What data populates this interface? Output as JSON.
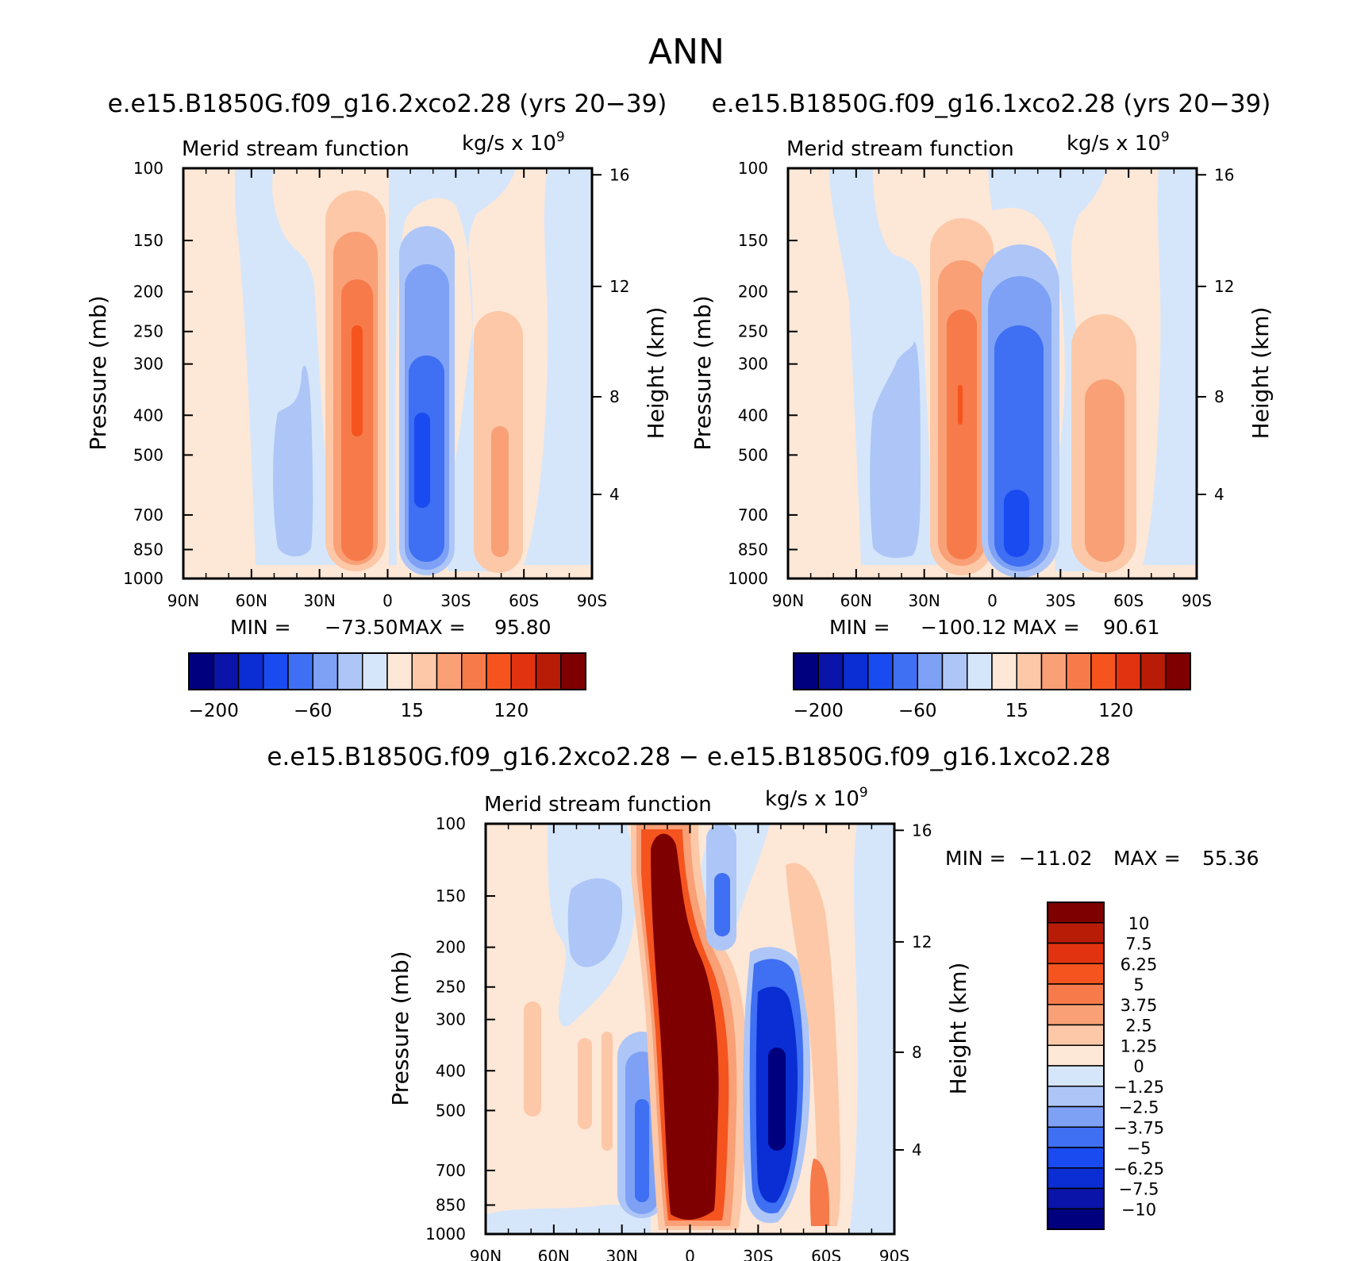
{
  "figure": {
    "title": "ANN",
    "diff_title": "e.e15.B1850G.f09_g16.2xco2.28 − e.e15.B1850G.f09_g16.1xco2.28"
  },
  "chart_data": [
    {
      "type": "heatmap",
      "id": "p1",
      "title": "e.e15.B1850G.f09_g16.2xco2.28 (yrs 20−39)",
      "left_label": "Merid stream function",
      "units_base": "kg/s x 10",
      "units_exp": "9",
      "xlabel": "",
      "ylabel": "Pressure (mb)",
      "ylabel_right": "Height (km)",
      "x_ticks": [
        "90N",
        "60N",
        "30N",
        "0",
        "30S",
        "60S",
        "90S"
      ],
      "y_ticks": [
        "100",
        "150",
        "200",
        "250",
        "300",
        "400",
        "500",
        "700",
        "850",
        "1000"
      ],
      "y_ticks_right": [
        "16",
        "12",
        "8",
        "4"
      ],
      "y_scale": "log",
      "ylim": [
        1000,
        100
      ],
      "min_label": "MIN =",
      "min_value": "−73.50",
      "max_label": "MAX =",
      "max_value": "95.80",
      "colorbar_labels": [
        "−200",
        "−60",
        "15",
        "120"
      ],
      "cells": [
        {
          "lat": -80,
          "lev": 500,
          "v": 3
        },
        {
          "lat": -75,
          "lev": 600,
          "v": -3
        },
        {
          "lat": -45,
          "lev": 550,
          "v": -15
        },
        {
          "lat": -40,
          "lev": 380,
          "v": -8
        },
        {
          "lat": -15,
          "lev": 450,
          "v": 95
        },
        {
          "lat": 15,
          "lev": 500,
          "v": -73
        },
        {
          "lat": 45,
          "lev": 600,
          "v": 40
        }
      ]
    },
    {
      "type": "heatmap",
      "id": "p2",
      "title": "e.e15.B1850G.f09_g16.1xco2.28 (yrs 20−39)",
      "left_label": "Merid stream function",
      "units_base": "kg/s x 10",
      "units_exp": "9",
      "xlabel": "",
      "ylabel": "Pressure (mb)",
      "ylabel_right": "Height (km)",
      "x_ticks": [
        "90N",
        "60N",
        "30N",
        "0",
        "30S",
        "60S",
        "90S"
      ],
      "y_ticks": [
        "100",
        "150",
        "200",
        "250",
        "300",
        "400",
        "500",
        "700",
        "850",
        "1000"
      ],
      "y_ticks_right": [
        "16",
        "12",
        "8",
        "4"
      ],
      "y_scale": "log",
      "ylim": [
        1000,
        100
      ],
      "min_label": "MIN =",
      "min_value": "−100.12",
      "max_label": "MAX =",
      "max_value": "90.61",
      "colorbar_labels": [
        "−200",
        "−60",
        "15",
        "120"
      ],
      "cells": [
        {
          "lat": -45,
          "lev": 550,
          "v": -15
        },
        {
          "lat": -15,
          "lev": 450,
          "v": 90
        },
        {
          "lat": 12,
          "lev": 550,
          "v": -100
        },
        {
          "lat": 45,
          "lev": 600,
          "v": 45
        }
      ]
    },
    {
      "type": "heatmap",
      "id": "p3",
      "title": "e.e15.B1850G.f09_g16.2xco2.28 − e.e15.B1850G.f09_g16.1xco2.28",
      "left_label": "Merid stream function",
      "units_base": "kg/s x 10",
      "units_exp": "9",
      "xlabel": "",
      "ylabel": "Pressure (mb)",
      "ylabel_right": "Height (km)",
      "x_ticks": [
        "90N",
        "60N",
        "30N",
        "0",
        "30S",
        "60S",
        "90S"
      ],
      "y_ticks": [
        "100",
        "150",
        "200",
        "250",
        "300",
        "400",
        "500",
        "700",
        "850",
        "1000"
      ],
      "y_ticks_right": [
        "16",
        "12",
        "8",
        "4"
      ],
      "y_scale": "log",
      "ylim": [
        1000,
        100
      ],
      "min_label": "MIN =",
      "min_value": "−11.02",
      "max_label": "MAX =",
      "max_value": "55.36",
      "colorbar_labels": [
        "10",
        "7.5",
        "6.25",
        "5",
        "3.75",
        "2.5",
        "1.25",
        "0",
        "−1.25",
        "−2.5",
        "−3.75",
        "−5",
        "−6.25",
        "−7.5",
        "−10"
      ],
      "cells": [
        {
          "lat": -5,
          "lev": 500,
          "v": 55
        },
        {
          "lat": 35,
          "lev": 450,
          "v": -11
        },
        {
          "lat": -20,
          "lev": 600,
          "v": -5
        },
        {
          "lat": -45,
          "lev": 180,
          "v": -2.5
        },
        {
          "lat": 50,
          "lev": 400,
          "v": 2.5
        }
      ]
    }
  ],
  "colors": {
    "palette": [
      "#00007f",
      "#0a14a8",
      "#0a2ed4",
      "#1a4bf0",
      "#3f6ff2",
      "#7ea1f5",
      "#adc6f7",
      "#d6e6fa",
      "#fde7d7",
      "#fcc8a7",
      "#f9a077",
      "#f77a4a",
      "#f5541f",
      "#e23310",
      "#b81c06",
      "#7f0000"
    ],
    "diff_palette": [
      "#7f0000",
      "#b81c06",
      "#e23310",
      "#f5541f",
      "#f77a4a",
      "#f9a077",
      "#fcc8a7",
      "#fde7d7",
      "#d6e6fa",
      "#adc6f7",
      "#7ea1f5",
      "#3f6ff2",
      "#1a4bf0",
      "#0a2ed4",
      "#0a14a8",
      "#00007f"
    ]
  }
}
